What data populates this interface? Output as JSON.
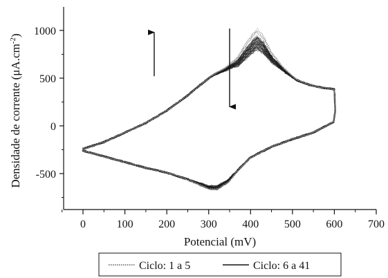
{
  "chart_data": {
    "type": "line",
    "title": "",
    "xlabel": "Potencial (mV)",
    "ylabel_main": "Densidade de corrente (μA.cm",
    "ylabel_sup": "-2",
    "ylabel_close": ")",
    "xlim": [
      -60,
      700
    ],
    "ylim": [
      -900,
      1250
    ],
    "x_ticks": [
      0,
      100,
      200,
      300,
      400,
      500,
      600,
      700
    ],
    "y_ticks": [
      -500,
      0,
      500,
      1000
    ],
    "grid": false,
    "legend_position": "bottom",
    "line_color": "#1a1a1a",
    "dotted_color": "#8a8a8a",
    "arrows": [
      {
        "x": 355,
        "y_from": 520,
        "y_to": 980
      },
      {
        "x": 535,
        "y_from": 1020,
        "y_to": 200
      }
    ],
    "series": [
      {
        "name": "Ciclo: 1 a 5",
        "style": "dotted",
        "cycles": 5,
        "anodic": [
          [
            0,
            -240
          ],
          [
            50,
            -170
          ],
          [
            100,
            -70
          ],
          [
            150,
            30
          ],
          [
            200,
            160
          ],
          [
            250,
            320
          ],
          [
            280,
            430
          ],
          [
            310,
            530
          ],
          [
            340,
            590
          ],
          [
            370,
            660
          ],
          [
            390,
            760
          ],
          [
            405,
            830
          ],
          [
            415,
            870
          ],
          [
            430,
            820
          ],
          [
            450,
            700
          ],
          [
            480,
            580
          ],
          [
            510,
            480
          ],
          [
            540,
            430
          ],
          [
            570,
            400
          ],
          [
            590,
            390
          ],
          [
            598,
            385
          ]
        ],
        "cathodic": [
          [
            600,
            380
          ],
          [
            602,
            150
          ],
          [
            598,
            40
          ],
          [
            580,
            0
          ],
          [
            550,
            -70
          ],
          [
            500,
            -140
          ],
          [
            450,
            -220
          ],
          [
            400,
            -330
          ],
          [
            370,
            -460
          ],
          [
            345,
            -580
          ],
          [
            320,
            -640
          ],
          [
            300,
            -640
          ],
          [
            250,
            -560
          ],
          [
            200,
            -490
          ],
          [
            150,
            -440
          ],
          [
            100,
            -380
          ],
          [
            50,
            -320
          ],
          [
            0,
            -260
          ]
        ]
      },
      {
        "name": "Ciclo: 6 a 41",
        "style": "solid",
        "cycles": 36,
        "anodic": [
          [
            0,
            -240
          ],
          [
            50,
            -170
          ],
          [
            100,
            -70
          ],
          [
            150,
            30
          ],
          [
            200,
            160
          ],
          [
            250,
            320
          ],
          [
            280,
            430
          ],
          [
            310,
            530
          ],
          [
            340,
            590
          ],
          [
            370,
            660
          ],
          [
            390,
            760
          ],
          [
            405,
            830
          ],
          [
            415,
            870
          ],
          [
            430,
            820
          ],
          [
            450,
            700
          ],
          [
            480,
            580
          ],
          [
            510,
            480
          ],
          [
            540,
            430
          ],
          [
            570,
            400
          ],
          [
            590,
            390
          ],
          [
            598,
            385
          ]
        ],
        "cathodic": [
          [
            600,
            380
          ],
          [
            602,
            150
          ],
          [
            598,
            40
          ],
          [
            580,
            0
          ],
          [
            550,
            -70
          ],
          [
            500,
            -140
          ],
          [
            450,
            -220
          ],
          [
            400,
            -330
          ],
          [
            370,
            -460
          ],
          [
            345,
            -580
          ],
          [
            320,
            -640
          ],
          [
            300,
            -640
          ],
          [
            250,
            -560
          ],
          [
            200,
            -490
          ],
          [
            150,
            -440
          ],
          [
            100,
            -380
          ],
          [
            50,
            -320
          ],
          [
            0,
            -260
          ]
        ]
      }
    ]
  }
}
